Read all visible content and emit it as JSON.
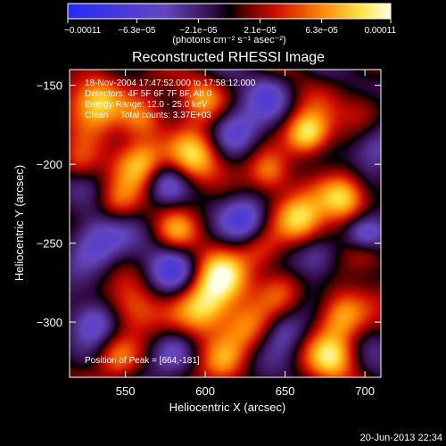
{
  "chart_data": {
    "type": "heatmap",
    "title": "Reconstructed RHESSI Image",
    "xlabel": "Heliocentric X (arcsec)",
    "ylabel": "Heliocentric Y (arcsec)",
    "xlim": [
      515,
      710
    ],
    "ylim": [
      -335,
      -140
    ],
    "x_ticks": [
      550,
      600,
      650,
      700
    ],
    "x_tick_labels": [
      "550",
      "600",
      "650",
      "700"
    ],
    "y_ticks": [
      -150,
      -200,
      -250,
      -300
    ],
    "y_tick_labels": [
      "−150",
      "−200",
      "−250",
      "−300"
    ],
    "colorbar": {
      "range": [
        -0.00011,
        0.00011
      ],
      "ticks": [
        -0.00011,
        -6.3e-05,
        -2.1e-05,
        2.1e-05,
        6.3e-05,
        0.00011
      ],
      "tick_labels": [
        "−0.00011",
        "−6.3e−05",
        "−2.1e−05",
        "2.1e−05",
        "6.3e−05",
        "0.00011"
      ],
      "units_label": "(photons cm⁻² s⁻¹ asec⁻²)"
    },
    "annotations": [
      "18-Nov-2004 17:47:52.000 to 17:58:12.000",
      "Detectors: 4F 5F 6F 7F 8F, Att 0",
      "Energy Range: 12.0 - 25.0 keV",
      "Clean     Total counts: 3.37E+03"
    ],
    "peak_label": "Position of Peak = [664,-181]",
    "peak": [
      664,
      -181
    ],
    "sources": [
      {
        "x": 532,
        "y": -160,
        "v": 0.9,
        "w": 12
      },
      {
        "x": 598,
        "y": -158,
        "v": 0.55,
        "w": 10
      },
      {
        "x": 560,
        "y": -172,
        "v": 0.55,
        "w": 10
      },
      {
        "x": 700,
        "y": -165,
        "v": 0.4,
        "w": 10
      },
      {
        "x": 664,
        "y": -181,
        "v": 1.0,
        "w": 10
      },
      {
        "x": 593,
        "y": -196,
        "v": 0.9,
        "w": 12
      },
      {
        "x": 560,
        "y": -198,
        "v": 0.7,
        "w": 11
      },
      {
        "x": 640,
        "y": -205,
        "v": 0.5,
        "w": 9
      },
      {
        "x": 687,
        "y": -221,
        "v": 0.9,
        "w": 11
      },
      {
        "x": 545,
        "y": -225,
        "v": 0.45,
        "w": 10
      },
      {
        "x": 660,
        "y": -235,
        "v": 0.75,
        "w": 11
      },
      {
        "x": 582,
        "y": -242,
        "v": 0.4,
        "w": 9
      },
      {
        "x": 700,
        "y": -255,
        "v": 0.5,
        "w": 9
      },
      {
        "x": 635,
        "y": -255,
        "v": 0.45,
        "w": 10
      },
      {
        "x": 610,
        "y": -270,
        "v": 0.6,
        "w": 11
      },
      {
        "x": 600,
        "y": -290,
        "v": 0.95,
        "w": 13
      },
      {
        "x": 648,
        "y": -278,
        "v": 0.45,
        "w": 10
      },
      {
        "x": 555,
        "y": -292,
        "v": 0.45,
        "w": 11
      },
      {
        "x": 625,
        "y": -305,
        "v": 0.55,
        "w": 11
      },
      {
        "x": 684,
        "y": -296,
        "v": 0.75,
        "w": 11
      },
      {
        "x": 680,
        "y": -322,
        "v": 0.65,
        "w": 11
      },
      {
        "x": 545,
        "y": -322,
        "v": 0.5,
        "w": 10
      },
      {
        "x": 612,
        "y": -324,
        "v": 0.45,
        "w": 10
      },
      {
        "x": 520,
        "y": -200,
        "v": 0.35,
        "w": 9
      },
      {
        "x": 575,
        "y": -212,
        "v": -0.55,
        "w": 10
      },
      {
        "x": 618,
        "y": -180,
        "v": -0.55,
        "w": 12
      },
      {
        "x": 705,
        "y": -190,
        "v": -0.6,
        "w": 11
      },
      {
        "x": 700,
        "y": -245,
        "v": -0.85,
        "w": 9
      },
      {
        "x": 530,
        "y": -250,
        "v": -0.6,
        "w": 13
      },
      {
        "x": 625,
        "y": -235,
        "v": -0.5,
        "w": 10
      },
      {
        "x": 580,
        "y": -268,
        "v": -0.45,
        "w": 11
      },
      {
        "x": 670,
        "y": -260,
        "v": -0.45,
        "w": 10
      },
      {
        "x": 530,
        "y": -300,
        "v": -0.5,
        "w": 10
      },
      {
        "x": 650,
        "y": -305,
        "v": -0.5,
        "w": 10
      },
      {
        "x": 580,
        "y": -318,
        "v": -0.4,
        "w": 10
      },
      {
        "x": 640,
        "y": -155,
        "v": -0.35,
        "w": 10
      }
    ]
  },
  "footer": {
    "date": "20-Jun-2013 22:34"
  },
  "colors": {
    "background": "#000000",
    "text": "#ffffff"
  }
}
